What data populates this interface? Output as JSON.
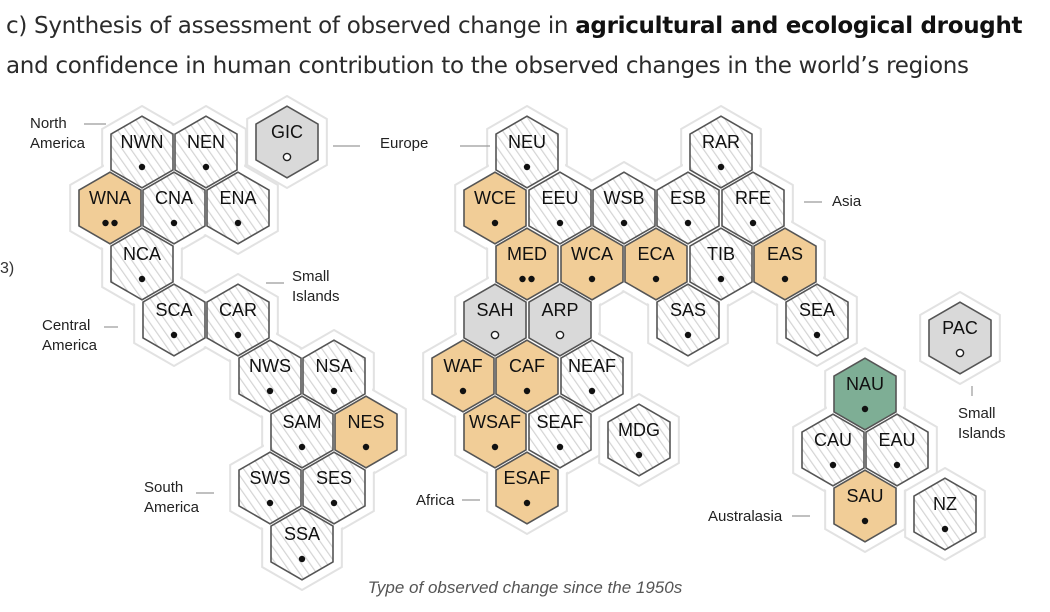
{
  "title": {
    "prefix": "c) Synthesis of assessment of observed change in ",
    "bold": "agricultural and ecological drought",
    "line2": "and confidence in human contribution to the observed changes in the world’s regions"
  },
  "edge_mark": "3)",
  "footer": "Type of observed change since the 1950s",
  "colors": {
    "increase": "#f1cd97",
    "decrease": "#7eae95",
    "low_agreement": "#d9d9d9",
    "limited_data": "#ffffff",
    "hex_stroke": "#555555",
    "hatch": "#cfcfcf",
    "outline": "#e2e2e2"
  },
  "group_labels": [
    {
      "id": "north-america",
      "lines": [
        "North",
        "America"
      ]
    },
    {
      "id": "europe",
      "lines": [
        "Europe"
      ]
    },
    {
      "id": "asia",
      "lines": [
        "Asia"
      ]
    },
    {
      "id": "small-islands-1",
      "lines": [
        "Small",
        "Islands"
      ]
    },
    {
      "id": "central-america",
      "lines": [
        "Central",
        "America"
      ]
    },
    {
      "id": "south-america",
      "lines": [
        "South",
        "America"
      ]
    },
    {
      "id": "africa",
      "lines": [
        "Africa"
      ]
    },
    {
      "id": "australasia",
      "lines": [
        "Australasia"
      ]
    },
    {
      "id": "small-islands-2",
      "lines": [
        "Small",
        "Islands"
      ]
    }
  ],
  "regions": [
    {
      "code": "NWN",
      "type": "limited_data",
      "dots": 1,
      "hollow": false
    },
    {
      "code": "NEN",
      "type": "limited_data",
      "dots": 1,
      "hollow": false
    },
    {
      "code": "GIC",
      "type": "low_agreement",
      "dots": 1,
      "hollow": true
    },
    {
      "code": "WNA",
      "type": "increase",
      "dots": 2,
      "hollow": false
    },
    {
      "code": "CNA",
      "type": "limited_data",
      "dots": 1,
      "hollow": false
    },
    {
      "code": "ENA",
      "type": "limited_data",
      "dots": 1,
      "hollow": false
    },
    {
      "code": "NCA",
      "type": "limited_data",
      "dots": 1,
      "hollow": false
    },
    {
      "code": "SCA",
      "type": "limited_data",
      "dots": 1,
      "hollow": false
    },
    {
      "code": "CAR",
      "type": "limited_data",
      "dots": 1,
      "hollow": false
    },
    {
      "code": "NWS",
      "type": "limited_data",
      "dots": 1,
      "hollow": false
    },
    {
      "code": "NSA",
      "type": "limited_data",
      "dots": 1,
      "hollow": false
    },
    {
      "code": "SAM",
      "type": "limited_data",
      "dots": 1,
      "hollow": false
    },
    {
      "code": "NES",
      "type": "increase",
      "dots": 1,
      "hollow": false
    },
    {
      "code": "SWS",
      "type": "limited_data",
      "dots": 1,
      "hollow": false
    },
    {
      "code": "SES",
      "type": "limited_data",
      "dots": 1,
      "hollow": false
    },
    {
      "code": "SSA",
      "type": "limited_data",
      "dots": 1,
      "hollow": false
    },
    {
      "code": "NEU",
      "type": "limited_data",
      "dots": 1,
      "hollow": false
    },
    {
      "code": "RAR",
      "type": "limited_data",
      "dots": 1,
      "hollow": false
    },
    {
      "code": "WCE",
      "type": "increase",
      "dots": 1,
      "hollow": false
    },
    {
      "code": "EEU",
      "type": "limited_data",
      "dots": 1,
      "hollow": false
    },
    {
      "code": "WSB",
      "type": "limited_data",
      "dots": 1,
      "hollow": false
    },
    {
      "code": "ESB",
      "type": "limited_data",
      "dots": 1,
      "hollow": false
    },
    {
      "code": "RFE",
      "type": "limited_data",
      "dots": 1,
      "hollow": false
    },
    {
      "code": "MED",
      "type": "increase",
      "dots": 2,
      "hollow": false
    },
    {
      "code": "WCA",
      "type": "increase",
      "dots": 1,
      "hollow": false
    },
    {
      "code": "ECA",
      "type": "increase",
      "dots": 1,
      "hollow": false
    },
    {
      "code": "TIB",
      "type": "limited_data",
      "dots": 1,
      "hollow": false
    },
    {
      "code": "EAS",
      "type": "increase",
      "dots": 1,
      "hollow": false
    },
    {
      "code": "SAH",
      "type": "low_agreement",
      "dots": 1,
      "hollow": true
    },
    {
      "code": "ARP",
      "type": "low_agreement",
      "dots": 1,
      "hollow": true
    },
    {
      "code": "SAS",
      "type": "limited_data",
      "dots": 1,
      "hollow": false
    },
    {
      "code": "SEA",
      "type": "limited_data",
      "dots": 1,
      "hollow": false
    },
    {
      "code": "PAC",
      "type": "low_agreement",
      "dots": 1,
      "hollow": true
    },
    {
      "code": "WAF",
      "type": "increase",
      "dots": 1,
      "hollow": false
    },
    {
      "code": "CAF",
      "type": "increase",
      "dots": 1,
      "hollow": false
    },
    {
      "code": "NEAF",
      "type": "limited_data",
      "dots": 1,
      "hollow": false
    },
    {
      "code": "NAU",
      "type": "decrease",
      "dots": 1,
      "hollow": false
    },
    {
      "code": "WSAF",
      "type": "increase",
      "dots": 1,
      "hollow": false
    },
    {
      "code": "SEAF",
      "type": "limited_data",
      "dots": 1,
      "hollow": false
    },
    {
      "code": "MDG",
      "type": "limited_data",
      "dots": 1,
      "hollow": false
    },
    {
      "code": "CAU",
      "type": "limited_data",
      "dots": 1,
      "hollow": false
    },
    {
      "code": "EAU",
      "type": "limited_data",
      "dots": 1,
      "hollow": false
    },
    {
      "code": "ESAF",
      "type": "increase",
      "dots": 1,
      "hollow": false
    },
    {
      "code": "SAU",
      "type": "increase",
      "dots": 1,
      "hollow": false
    },
    {
      "code": "NZ",
      "type": "limited_data",
      "dots": 1,
      "hollow": false
    }
  ]
}
